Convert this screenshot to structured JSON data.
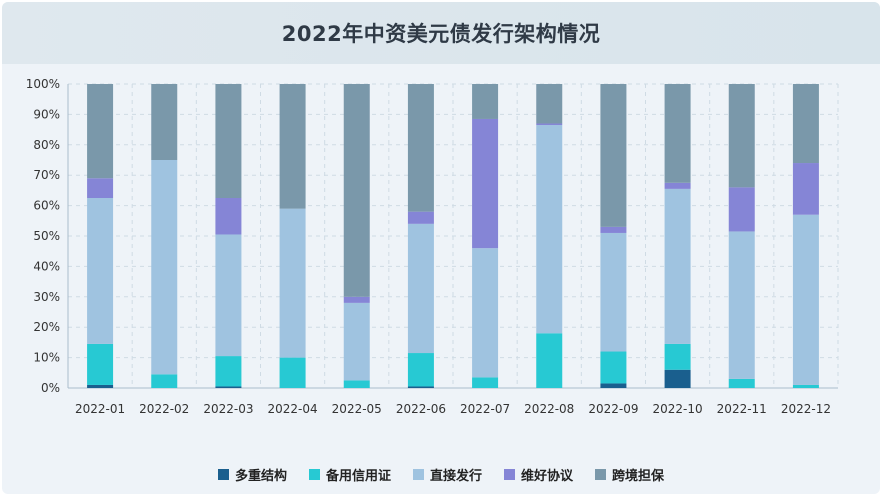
{
  "chart_data": {
    "type": "bar",
    "stacked": true,
    "title": "2022年中资美元债发行架构情况",
    "categories": [
      "2022-01",
      "2022-02",
      "2022-03",
      "2022-04",
      "2022-05",
      "2022-06",
      "2022-07",
      "2022-08",
      "2022-09",
      "2022-10",
      "2022-11",
      "2022-12"
    ],
    "ylim": [
      0,
      100
    ],
    "yticks": [
      "0%",
      "10%",
      "20%",
      "30%",
      "40%",
      "50%",
      "60%",
      "70%",
      "80%",
      "90%",
      "100%"
    ],
    "grid": true,
    "legend_position": "bottom",
    "series": [
      {
        "name": "多重结构",
        "color": "#1a5f8e",
        "values": [
          1,
          0,
          0.5,
          0,
          0,
          0.5,
          0,
          0,
          1.5,
          6,
          0,
          0
        ]
      },
      {
        "name": "备用信用证",
        "color": "#27c9d3",
        "values": [
          13.5,
          4.5,
          10,
          10,
          2.5,
          11,
          3.5,
          18,
          10.5,
          8.5,
          3,
          1
        ]
      },
      {
        "name": "直接发行",
        "color": "#9fc3e0",
        "values": [
          48,
          70.5,
          40,
          49,
          25.5,
          42.5,
          42.5,
          68.5,
          39,
          51,
          48.5,
          56
        ]
      },
      {
        "name": "维好协议",
        "color": "#8585d6",
        "values": [
          6.5,
          0,
          12,
          0,
          2,
          4,
          42.5,
          0.5,
          2,
          2,
          14.5,
          17
        ]
      },
      {
        "name": "跨境担保",
        "color": "#7a98aa",
        "values": [
          31,
          25,
          37.5,
          41,
          70,
          42,
          11.5,
          13,
          47,
          32.5,
          34,
          26
        ]
      }
    ]
  }
}
